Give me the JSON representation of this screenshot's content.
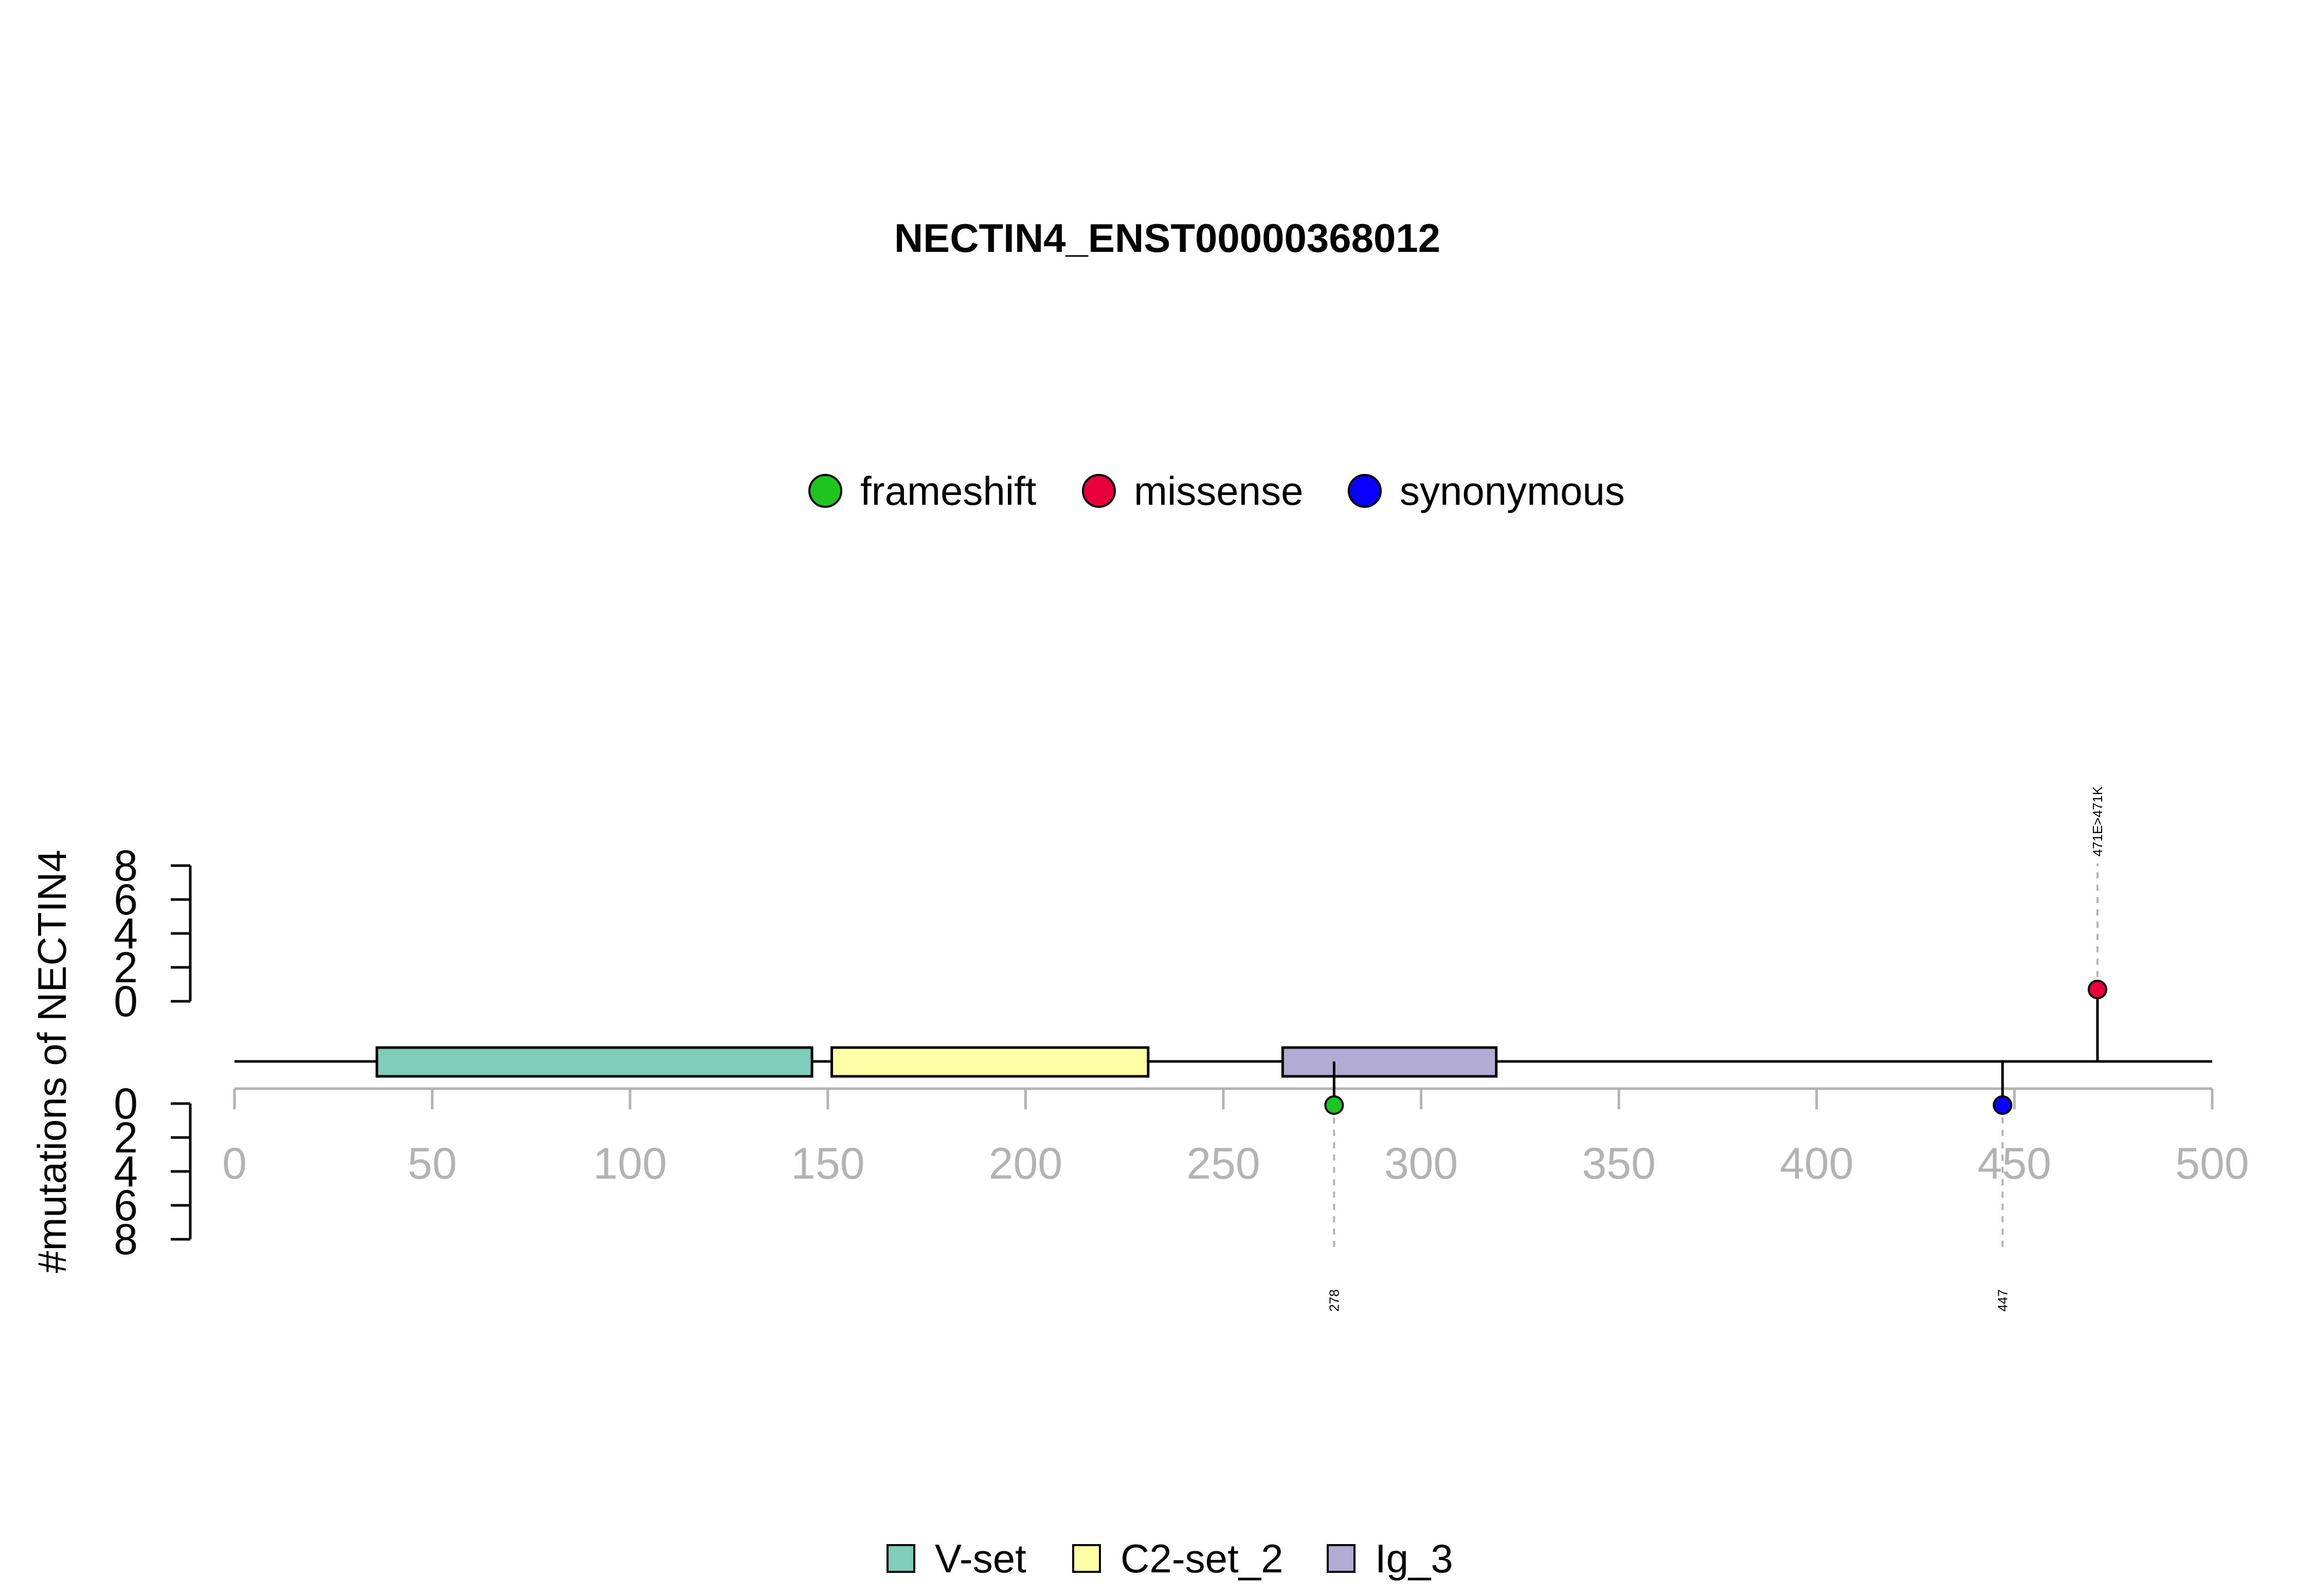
{
  "chart_data": {
    "type": "lollipop",
    "title": "NECTIN4_ENST00000368012",
    "ylabel": "#mutations of NECTIN4",
    "xlim": [
      0,
      500
    ],
    "x_ticks": [
      0,
      50,
      100,
      150,
      200,
      250,
      300,
      350,
      400,
      450,
      500
    ],
    "y_ticks": [
      0,
      2,
      4,
      6,
      8
    ],
    "grid": false,
    "mutation_legend": {
      "placement": "top-center",
      "entries": [
        {
          "name": "frameshift",
          "color": "#1ec51e"
        },
        {
          "name": "missense",
          "color": "#e8003c"
        },
        {
          "name": "synonymous",
          "color": "#0a00ff"
        }
      ]
    },
    "domain_legend": {
      "placement": "bottom-center",
      "entries": [
        {
          "name": "V-set",
          "color": "#80cdb9"
        },
        {
          "name": "C2-set_2",
          "color": "#ffffa8"
        },
        {
          "name": "Ig_3",
          "color": "#b2acd4"
        }
      ]
    },
    "protein_length": 500,
    "domains": [
      {
        "name": "V-set",
        "start": 36,
        "end": 146
      },
      {
        "name": "C2-set_2",
        "start": 151,
        "end": 231
      },
      {
        "name": "Ig_3",
        "start": 265,
        "end": 319
      }
    ],
    "mutations": [
      {
        "position": 278,
        "type": "frameshift",
        "count": 1,
        "side": "bottom",
        "label": "278"
      },
      {
        "position": 447,
        "type": "synonymous",
        "count": 1,
        "side": "bottom",
        "label": "447"
      },
      {
        "position": 471,
        "type": "missense",
        "count": 1,
        "side": "top",
        "label": "471E>471K"
      }
    ]
  }
}
